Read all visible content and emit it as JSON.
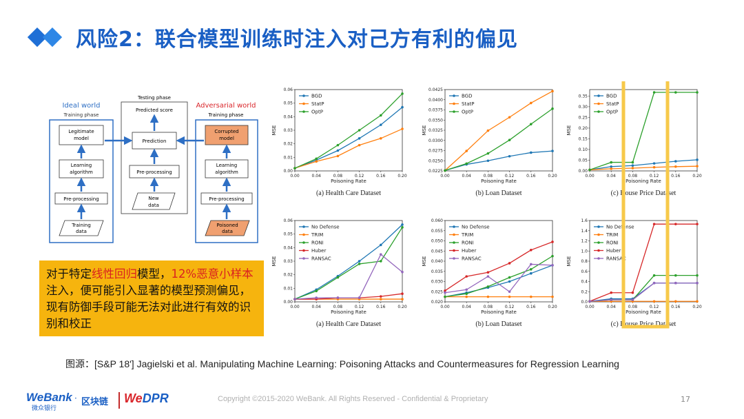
{
  "title": "风险2：联合模型训练时注入对己方有利的偏见",
  "diagram": {
    "ideal_world": "Ideal world",
    "ideal_training_phase": "Training phase",
    "testing_phase": "Testing phase",
    "adversarial_world": "Adversarial world",
    "adv_training_phase": "Training phase",
    "legitimate_model": [
      "Legitimate",
      "model"
    ],
    "learning_algorithm_1": [
      "Learning",
      "algorithm"
    ],
    "preprocessing_1": "Pre-processing",
    "training_data": [
      "Training",
      "data"
    ],
    "predicted_score": "Predicted score",
    "prediction": "Prediction",
    "preprocessing_2": "Pre-processing",
    "new_data": [
      "New",
      "data"
    ],
    "corrupted_model": [
      "Corrupted",
      "model"
    ],
    "learning_algorithm_2": [
      "Learning",
      "algorithm"
    ],
    "preprocessing_3": "Pre-processing",
    "poisoned_data": [
      "Poisoned",
      "data"
    ]
  },
  "callout": {
    "p1": "对于特定",
    "r1": "线性回归",
    "p2": "模型，",
    "r2": "12%恶意小样本",
    "p3": "注入，便可能引入显著的模型预测偏见，现有防御手段可能无法对此进行有效的识别和校正"
  },
  "colors": {
    "blue": "#1f77b4",
    "orange": "#ff7f0e",
    "green": "#2ca02c",
    "red": "#d62728",
    "purple": "#9467bd",
    "highlight": "#f7c94a"
  },
  "chart_data": [
    {
      "type": "line",
      "caption": "(a) Health Care Dataset",
      "xlabel": "Poisoning Rate",
      "ylabel": "MSE",
      "x": [
        0.0,
        0.04,
        0.08,
        0.12,
        0.16,
        0.2
      ],
      "xticks": [
        "0.00",
        "0.04",
        "0.08",
        "0.12",
        "0.16",
        "0.20"
      ],
      "ylim": [
        0.0,
        0.06
      ],
      "yticks": [
        "0.00",
        "0.01",
        "0.02",
        "0.03",
        "0.04",
        "0.05",
        "0.06"
      ],
      "legend": "top-left",
      "series": [
        {
          "name": "BGD",
          "color": "#1f77b4",
          "values": [
            0.002,
            0.008,
            0.015,
            0.024,
            0.034,
            0.047
          ]
        },
        {
          "name": "StatP",
          "color": "#ff7f0e",
          "values": [
            0.002,
            0.007,
            0.011,
            0.019,
            0.024,
            0.031
          ]
        },
        {
          "name": "OptP",
          "color": "#2ca02c",
          "values": [
            0.002,
            0.009,
            0.019,
            0.03,
            0.041,
            0.057
          ]
        }
      ]
    },
    {
      "type": "line",
      "caption": "(b) Loan Dataset",
      "xlabel": "Poisoning Rate",
      "ylabel": "MSE",
      "x": [
        0.0,
        0.04,
        0.08,
        0.12,
        0.16,
        0.2
      ],
      "xticks": [
        "0.00",
        "0.04",
        "0.08",
        "0.12",
        "0.16",
        "0.20"
      ],
      "ylim": [
        0.0225,
        0.0425
      ],
      "yticks": [
        "0.0225",
        "0.0250",
        "0.0275",
        "0.0300",
        "0.0325",
        "0.0350",
        "0.0375",
        "0.0400",
        "0.0425"
      ],
      "legend": "top-left",
      "series": [
        {
          "name": "BGD",
          "color": "#1f77b4",
          "values": [
            0.0226,
            0.0241,
            0.025,
            0.0261,
            0.027,
            0.0274
          ]
        },
        {
          "name": "StatP",
          "color": "#ff7f0e",
          "values": [
            0.0226,
            0.0274,
            0.0324,
            0.0357,
            0.0392,
            0.0421
          ]
        },
        {
          "name": "OptP",
          "color": "#2ca02c",
          "values": [
            0.0226,
            0.0243,
            0.0268,
            0.0301,
            0.034,
            0.0378
          ]
        }
      ]
    },
    {
      "type": "line",
      "caption": "(c) House Price Dataset",
      "xlabel": "Poisoning Rate",
      "ylabel": "MSE",
      "x": [
        0.0,
        0.04,
        0.08,
        0.12,
        0.16,
        0.2
      ],
      "xticks": [
        "0.00",
        "0.04",
        "0.08",
        "0.12",
        "0.16",
        "0.20"
      ],
      "ylim": [
        0.0,
        0.38
      ],
      "yticks": [
        "0.00",
        "0.05",
        "0.10",
        "0.15",
        "0.20",
        "0.25",
        "0.30",
        "0.35"
      ],
      "legend": "top-left",
      "series": [
        {
          "name": "BGD",
          "color": "#1f77b4",
          "values": [
            0.005,
            0.02,
            0.025,
            0.035,
            0.045,
            0.052
          ]
        },
        {
          "name": "StatP",
          "color": "#ff7f0e",
          "values": [
            0.005,
            0.01,
            0.013,
            0.017,
            0.02,
            0.022
          ]
        },
        {
          "name": "OptP",
          "color": "#2ca02c",
          "values": [
            0.005,
            0.04,
            0.04,
            0.367,
            0.367,
            0.367
          ]
        }
      ]
    },
    {
      "type": "line",
      "caption": "(a) Health Care Dataset",
      "xlabel": "Poisoning Rate",
      "ylabel": "MSE",
      "x": [
        0.0,
        0.04,
        0.08,
        0.12,
        0.16,
        0.2
      ],
      "xticks": [
        "0.00",
        "0.04",
        "0.08",
        "0.12",
        "0.16",
        "0.20"
      ],
      "ylim": [
        0.0,
        0.06
      ],
      "yticks": [
        "0.00",
        "0.01",
        "0.02",
        "0.03",
        "0.04",
        "0.05",
        "0.06"
      ],
      "legend": "top-left",
      "series": [
        {
          "name": "No Defense",
          "color": "#1f77b4",
          "values": [
            0.002,
            0.009,
            0.019,
            0.03,
            0.042,
            0.057
          ]
        },
        {
          "name": "TRIM",
          "color": "#ff7f0e",
          "values": [
            0.002,
            0.002,
            0.002,
            0.002,
            0.002,
            0.002
          ]
        },
        {
          "name": "RONI",
          "color": "#2ca02c",
          "values": [
            0.002,
            0.008,
            0.018,
            0.028,
            0.03,
            0.055
          ]
        },
        {
          "name": "Huber",
          "color": "#d62728",
          "values": [
            0.002,
            0.002,
            0.003,
            0.003,
            0.004,
            0.006
          ]
        },
        {
          "name": "RANSAC",
          "color": "#9467bd",
          "values": [
            0.002,
            0.003,
            0.003,
            0.003,
            0.035,
            0.022
          ]
        }
      ]
    },
    {
      "type": "line",
      "caption": "(b) Loan Dataset",
      "xlabel": "Poisoning Rate",
      "ylabel": "MSE",
      "x": [
        0.0,
        0.04,
        0.08,
        0.12,
        0.16,
        0.2
      ],
      "xticks": [
        "0.00",
        "0.04",
        "0.08",
        "0.12",
        "0.16",
        "0.20"
      ],
      "ylim": [
        0.02,
        0.06
      ],
      "yticks": [
        "0.020",
        "0.025",
        "0.030",
        "0.035",
        "0.040",
        "0.045",
        "0.050",
        "0.055",
        "0.060"
      ],
      "legend": "top-left",
      "series": [
        {
          "name": "No Defense",
          "color": "#1f77b4",
          "values": [
            0.0225,
            0.0245,
            0.027,
            0.03,
            0.034,
            0.038
          ]
        },
        {
          "name": "TRIM",
          "color": "#ff7f0e",
          "values": [
            0.0225,
            0.0225,
            0.0225,
            0.0225,
            0.0225,
            0.0225
          ]
        },
        {
          "name": "RONI",
          "color": "#2ca02c",
          "values": [
            0.0225,
            0.024,
            0.0275,
            0.032,
            0.036,
            0.0425
          ]
        },
        {
          "name": "Huber",
          "color": "#d62728",
          "values": [
            0.0255,
            0.0325,
            0.0345,
            0.039,
            0.0455,
            0.0495
          ]
        },
        {
          "name": "RANSAC",
          "color": "#9467bd",
          "values": [
            0.0245,
            0.026,
            0.0325,
            0.025,
            0.0385,
            0.038
          ]
        }
      ]
    },
    {
      "type": "line",
      "caption": "(c) House Price Dataset",
      "xlabel": "Poisoning Rate",
      "ylabel": "MSE",
      "x": [
        0.0,
        0.04,
        0.08,
        0.12,
        0.16,
        0.2
      ],
      "xticks": [
        "0.00",
        "0.04",
        "0.08",
        "0.12",
        "0.16",
        "0.20"
      ],
      "ylim": [
        0.0,
        1.6
      ],
      "yticks": [
        "0.0",
        "0.2",
        "0.4",
        "0.6",
        "0.8",
        "1.0",
        "1.2",
        "1.4",
        "1.6"
      ],
      "legend": "top-left",
      "series": [
        {
          "name": "No Defense",
          "color": "#1f77b4",
          "values": [
            0.01,
            0.06,
            0.06,
            0.37,
            0.37,
            0.37
          ]
        },
        {
          "name": "TRIM",
          "color": "#ff7f0e",
          "values": [
            0.01,
            0.01,
            0.01,
            0.01,
            0.01,
            0.01
          ]
        },
        {
          "name": "RONI",
          "color": "#2ca02c",
          "values": [
            0.01,
            0.04,
            0.04,
            0.52,
            0.52,
            0.52
          ]
        },
        {
          "name": "Huber",
          "color": "#d62728",
          "values": [
            0.01,
            0.18,
            0.18,
            1.53,
            1.53,
            1.53
          ]
        },
        {
          "name": "RANSAC",
          "color": "#9467bd",
          "values": [
            0.01,
            0.04,
            0.04,
            0.37,
            0.37,
            0.37
          ]
        }
      ]
    }
  ],
  "source": "图源：[S&P 18'] Jagielski et al. Manipulating Machine Learning: Poisoning Attacks and Countermeasures for Regression Learning",
  "footer": {
    "webank": "WeBank",
    "webank_cn": "微众银行",
    "dot": "·",
    "chain": "区块链",
    "wedpr_we": "We",
    "wedpr_rest": "DPR",
    "copyright": "Copyright ©2015-2020 WeBank. All Rights Reserved - Confidential & Proprietary",
    "page": "17"
  }
}
